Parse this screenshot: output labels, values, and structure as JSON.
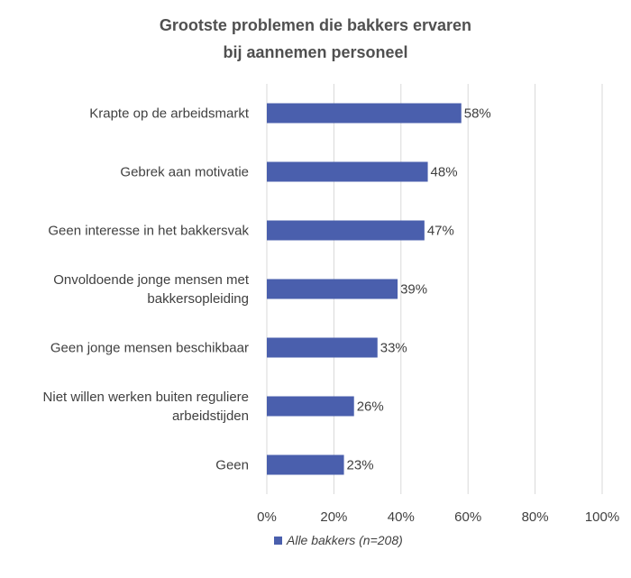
{
  "chart_data": {
    "type": "bar",
    "orientation": "horizontal",
    "title": [
      "Grootste problemen die bakkers ervaren",
      "bij aannemen personeel"
    ],
    "categories": [
      [
        "Krapte op de arbeidsmarkt"
      ],
      [
        "Gebrek aan motivatie"
      ],
      [
        "Geen interesse in het bakkersvak"
      ],
      [
        "Onvoldoende jonge mensen met",
        "bakkersopleiding"
      ],
      [
        "Geen jonge mensen beschikbaar"
      ],
      [
        "Niet willen werken buiten reguliere",
        "arbeidstijden"
      ],
      [
        "Geen"
      ]
    ],
    "series": [
      {
        "name": "Alle bakkers (n=208)",
        "values": [
          58,
          48,
          47,
          39,
          33,
          26,
          23
        ],
        "labels": [
          "58%",
          "48%",
          "47%",
          "39%",
          "33%",
          "26%",
          "23%"
        ],
        "color": "#4a5fad"
      }
    ],
    "xlim": [
      0,
      100
    ],
    "ticks": [
      0,
      20,
      40,
      60,
      80,
      100
    ],
    "tick_labels": [
      "0%",
      "20%",
      "40%",
      "60%",
      "80%",
      "100%"
    ],
    "grid": true,
    "legend_position": "bottom",
    "xlabel": "",
    "ylabel": ""
  },
  "colors": {
    "bar": "#4a5fad",
    "grid": "#d9d9d9",
    "text": "#404040"
  }
}
